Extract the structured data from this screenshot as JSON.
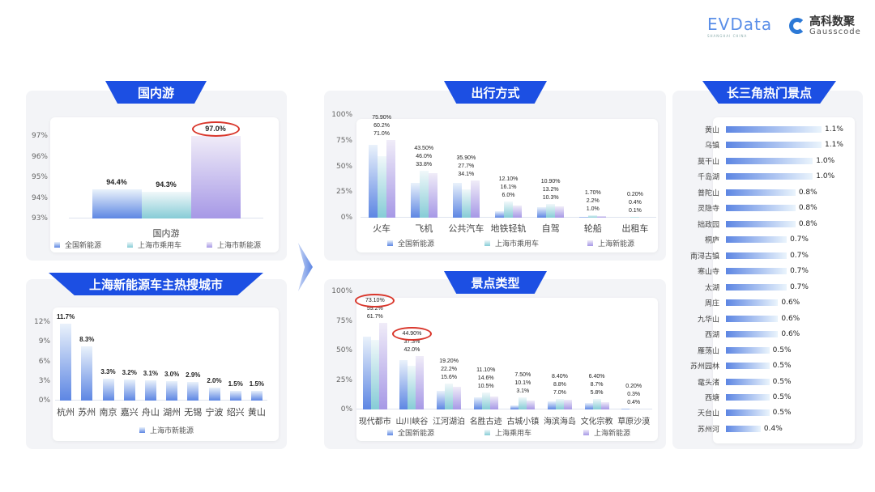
{
  "header": {
    "logo_evdata": "EVData",
    "logo_evdata_sub": "SHANGHAI CHINA",
    "logo_gauss_cn": "高科数聚",
    "logo_gauss_en": "Gausscode"
  },
  "sections": {
    "domestic": "国内游",
    "cities": "上海新能源车主热搜城市",
    "travel": "出行方式",
    "scenic_type": "景点类型",
    "hot_spots": "长三角热门景点"
  },
  "colors": {
    "banner": "#1c4fe3",
    "series": [
      "#5d86e3",
      "#86ccd6",
      "#a698e6"
    ],
    "highlight_ring": "#d9362b"
  },
  "chart_data": [
    {
      "id": "domestic",
      "type": "bar",
      "categories": [
        "国内游"
      ],
      "series": [
        {
          "name": "全国新能源",
          "values": [
            94.4
          ],
          "labels": [
            "94.4%"
          ]
        },
        {
          "name": "上海市乘用车",
          "values": [
            94.3
          ],
          "labels": [
            "94.3%"
          ]
        },
        {
          "name": "上海市新能源",
          "values": [
            97.0
          ],
          "labels": [
            "97.0%"
          ]
        }
      ],
      "ylim": [
        93,
        97
      ],
      "yticks": [
        {
          "v": 93,
          "t": "93%"
        },
        {
          "v": 94,
          "t": "94%"
        },
        {
          "v": 95,
          "t": "95%"
        },
        {
          "v": 96,
          "t": "96%"
        },
        {
          "v": 97,
          "t": "97%"
        }
      ],
      "highlights": [
        {
          "series": 2,
          "index": 0
        }
      ],
      "legend": "bottom"
    },
    {
      "id": "cities",
      "type": "bar",
      "categories": [
        "杭州",
        "苏州",
        "南京",
        "嘉兴",
        "舟山",
        "湖州",
        "无锡",
        "宁波",
        "绍兴",
        "黄山"
      ],
      "series": [
        {
          "name": "上海市新能源",
          "values": [
            11.7,
            8.3,
            3.3,
            3.2,
            3.1,
            3.0,
            2.9,
            2.0,
            1.5,
            1.5
          ],
          "labels": [
            "11.7%",
            "8.3%",
            "3.3%",
            "3.2%",
            "3.1%",
            "3.0%",
            "2.9%",
            "2.0%",
            "1.5%",
            "1.5%"
          ]
        }
      ],
      "ylim": [
        0,
        12
      ],
      "yticks": [
        {
          "v": 0,
          "t": "0%"
        },
        {
          "v": 3,
          "t": "3%"
        },
        {
          "v": 6,
          "t": "6%"
        },
        {
          "v": 9,
          "t": "9%"
        },
        {
          "v": 12,
          "t": "12%"
        }
      ],
      "highlights": [],
      "legend": "bottom"
    },
    {
      "id": "travel",
      "type": "bar",
      "categories": [
        "火车",
        "飞机",
        "公共汽车",
        "地铁轻轨",
        "自驾",
        "轮船",
        "出租车"
      ],
      "series": [
        {
          "name": "全国新能源",
          "values": [
            71.0,
            33.8,
            34.1,
            6.0,
            10.3,
            1.0,
            0.1
          ],
          "labels": [
            "71.0%",
            "33.8%",
            "34.1%",
            "6.0%",
            "10.3%",
            "1.0%",
            "0.1%"
          ]
        },
        {
          "name": "上海市乘用车",
          "values": [
            60.2,
            46.0,
            27.7,
            16.1,
            13.2,
            2.2,
            0.4
          ],
          "labels": [
            "60.2%",
            "46.0%",
            "27.7%",
            "16.1%",
            "13.2%",
            "2.2%",
            "0.4%"
          ]
        },
        {
          "name": "上海新能源",
          "values": [
            75.9,
            43.5,
            35.9,
            12.1,
            10.9,
            1.7,
            0.2
          ],
          "labels": [
            "75.90%",
            "43.50%",
            "35.90%",
            "12.10%",
            "10.90%",
            "1.70%",
            "0.20%"
          ]
        }
      ],
      "ylim": [
        0,
        100
      ],
      "yticks": [
        {
          "v": 0,
          "t": "0%"
        },
        {
          "v": 25,
          "t": "25%"
        },
        {
          "v": 50,
          "t": "50%"
        },
        {
          "v": 75,
          "t": "75%"
        },
        {
          "v": 100,
          "t": "100%"
        }
      ],
      "highlights": [],
      "legend": "bottom"
    },
    {
      "id": "scenic",
      "type": "bar",
      "categories": [
        "现代都市",
        "山川峡谷",
        "江河湖泊",
        "名胜古迹",
        "古城小镇",
        "海滨海岛",
        "文化宗教",
        "草原沙漠"
      ],
      "series": [
        {
          "name": "全国新能源",
          "values": [
            61.7,
            42.0,
            15.6,
            10.5,
            3.1,
            7.0,
            5.8,
            0.4
          ],
          "labels": [
            "61.7%",
            "42.0%",
            "15.6%",
            "10.5%",
            "3.1%",
            "7.0%",
            "5.8%",
            "0.4%"
          ]
        },
        {
          "name": "上海乘用车",
          "values": [
            59.2,
            37.3,
            22.2,
            14.6,
            10.1,
            8.8,
            8.7,
            0.3
          ],
          "labels": [
            "59.2%",
            "37.3%",
            "22.2%",
            "14.6%",
            "10.1%",
            "8.8%",
            "8.7%",
            "0.3%"
          ]
        },
        {
          "name": "上海新能源",
          "values": [
            73.1,
            44.9,
            19.2,
            11.1,
            7.5,
            8.4,
            6.4,
            0.2
          ],
          "labels": [
            "73.10%",
            "44.90%",
            "19.20%",
            "11.10%",
            "7.50%",
            "8.40%",
            "6.40%",
            "0.20%"
          ]
        }
      ],
      "ylim": [
        0,
        100
      ],
      "yticks": [
        {
          "v": 0,
          "t": "0%"
        },
        {
          "v": 25,
          "t": "25%"
        },
        {
          "v": 50,
          "t": "50%"
        },
        {
          "v": 75,
          "t": "75%"
        },
        {
          "v": 100,
          "t": "100%"
        }
      ],
      "highlights": [
        {
          "series": 2,
          "index": 0
        },
        {
          "series": 2,
          "index": 1
        }
      ],
      "legend": "bottom"
    },
    {
      "id": "hot_spots",
      "type": "bar",
      "orientation": "horizontal",
      "categories": [
        "黄山",
        "乌镇",
        "莫干山",
        "千岛湖",
        "普陀山",
        "灵隐寺",
        "拙政园",
        "桐庐",
        "南浔古镇",
        "寒山寺",
        "太湖",
        "周庄",
        "九华山",
        "西湖",
        "雁荡山",
        "苏州园林",
        "鼋头渚",
        "西塘",
        "天台山",
        "苏州河"
      ],
      "values": [
        1.1,
        1.1,
        1.0,
        1.0,
        0.8,
        0.8,
        0.8,
        0.7,
        0.7,
        0.7,
        0.7,
        0.6,
        0.6,
        0.6,
        0.5,
        0.5,
        0.5,
        0.5,
        0.5,
        0.4
      ],
      "labels": [
        "1.1%",
        "1.1%",
        "1.0%",
        "1.0%",
        "0.8%",
        "0.8%",
        "0.8%",
        "0.7%",
        "0.7%",
        "0.7%",
        "0.7%",
        "0.6%",
        "0.6%",
        "0.6%",
        "0.5%",
        "0.5%",
        "0.5%",
        "0.5%",
        "0.5%",
        "0.4%"
      ]
    }
  ]
}
